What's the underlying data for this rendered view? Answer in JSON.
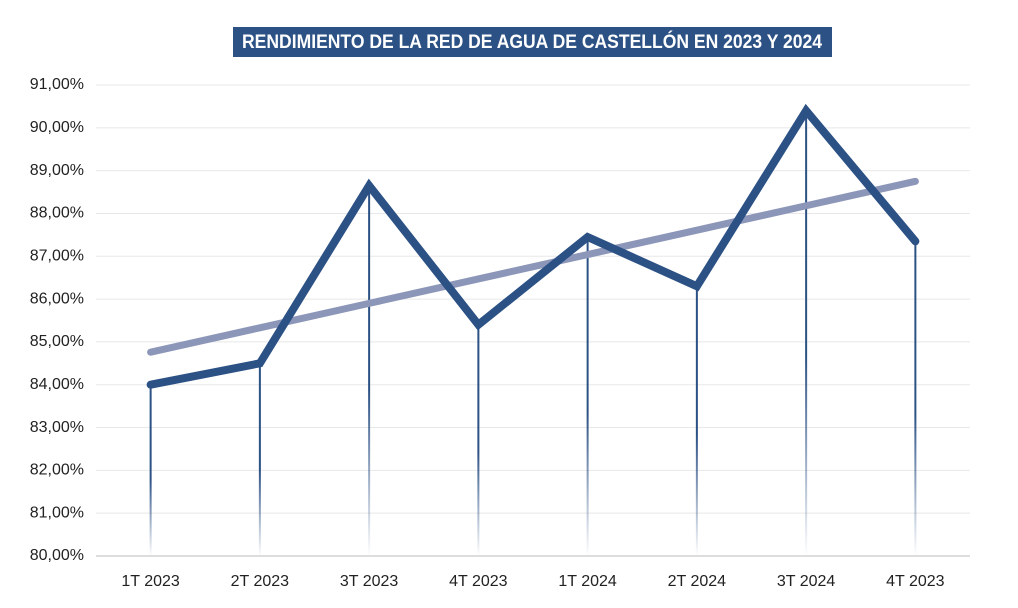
{
  "chart_data": {
    "type": "line",
    "title": "RENDIMIENTO DE LA RED DE AGUA DE CASTELLÓN EN 2023 Y 2024",
    "categories": [
      "1T 2023",
      "2T 2023",
      "3T 2023",
      "4T 2023",
      "1T 2024",
      "2T 2024",
      "3T 2024",
      "4T 2023"
    ],
    "series": [
      {
        "color": "#2c5185",
        "values": [
          84.0,
          84.5,
          88.65,
          85.4,
          87.45,
          86.3,
          90.4,
          87.35
        ]
      },
      {
        "color": "#8c96b8",
        "values": [
          84.76,
          85.33,
          85.9,
          86.47,
          87.04,
          87.61,
          88.18,
          88.75
        ]
      }
    ],
    "ylim": [
      80,
      91
    ],
    "yticks": [
      {
        "value": 80,
        "label": "80,00%"
      },
      {
        "value": 81,
        "label": "81,00%"
      },
      {
        "value": 82,
        "label": "82,00%"
      },
      {
        "value": 83,
        "label": "83,00%"
      },
      {
        "value": 84,
        "label": "84,00%"
      },
      {
        "value": 85,
        "label": "85,00%"
      },
      {
        "value": 86,
        "label": "86,00%"
      },
      {
        "value": 87,
        "label": "87,00%"
      },
      {
        "value": 88,
        "label": "88,00%"
      },
      {
        "value": 89,
        "label": "89,00%"
      },
      {
        "value": 90,
        "label": "90,00%"
      },
      {
        "value": 91,
        "label": "91,00%"
      }
    ],
    "grid": true
  }
}
